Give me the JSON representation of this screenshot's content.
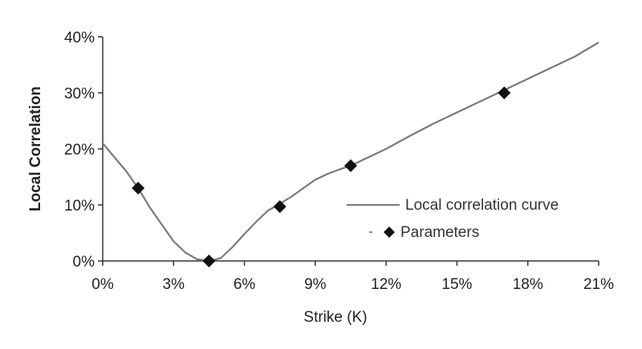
{
  "chart_data": {
    "type": "line",
    "xlabel": "Strike (K)",
    "ylabel": "Local Correlation",
    "xlim": [
      0,
      21
    ],
    "ylim": [
      0,
      40
    ],
    "x_ticks": [
      "0%",
      "3%",
      "6%",
      "9%",
      "12%",
      "15%",
      "18%",
      "21%"
    ],
    "y_ticks": [
      "0%",
      "10%",
      "20%",
      "30%",
      "40%"
    ],
    "grid": false,
    "legend_position": "right-middle",
    "series": [
      {
        "name": "Local correlation curve",
        "style": "line",
        "color": "#7a7a7a",
        "x": [
          0,
          1.0,
          1.5,
          2.0,
          2.5,
          3.0,
          3.5,
          4.0,
          4.5,
          5.0,
          5.5,
          6.0,
          6.5,
          7.0,
          7.5,
          8.0,
          8.5,
          9.0,
          9.5,
          10.0,
          10.5,
          11.0,
          12.0,
          13.0,
          14.0,
          15.0,
          16.0,
          17.0,
          18.0,
          19.0,
          20.0,
          21.0
        ],
        "y": [
          21,
          16,
          13,
          9.5,
          6.5,
          3.5,
          1.5,
          0.3,
          0,
          0.5,
          2.5,
          4.8,
          7.0,
          9.0,
          10.2,
          11.5,
          13.0,
          14.5,
          15.5,
          16.3,
          17.0,
          18.0,
          20.0,
          22.3,
          24.5,
          26.5,
          28.5,
          30.5,
          32.5,
          34.5,
          36.5,
          39.0
        ]
      },
      {
        "name": "Parameters",
        "style": "marker",
        "marker": "diamond",
        "color": "#111111",
        "x": [
          1.5,
          4.5,
          7.5,
          10.5,
          17.0
        ],
        "y": [
          13,
          0,
          9.7,
          17,
          30
        ]
      }
    ]
  }
}
